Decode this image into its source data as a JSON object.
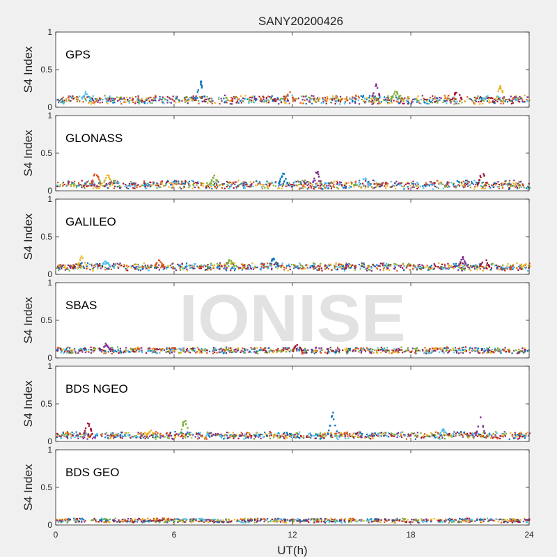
{
  "chart_data": {
    "type": "scatter",
    "title": "SANY20200426",
    "xlabel": "UT(h)",
    "ylabel": "S4 Index",
    "xlim": [
      0,
      24
    ],
    "ylim": [
      0,
      1
    ],
    "x_ticks": [
      "0",
      "6",
      "12",
      "18",
      "24"
    ],
    "y_ticks": [
      "0",
      "0.5",
      "1"
    ],
    "grid": false,
    "legend": "none",
    "watermark": "IONISE",
    "series_colors": [
      "#0072bd",
      "#d95319",
      "#edb120",
      "#7e2f8e",
      "#77ac30",
      "#4dbeee",
      "#a2142f"
    ],
    "panels": [
      {
        "label": "GPS",
        "baseline": 0.1,
        "noise": 0.04,
        "spikes": [
          [
            7.3,
            0.38
          ],
          [
            16.2,
            0.33
          ],
          [
            20.3,
            0.25
          ],
          [
            22.5,
            0.33
          ],
          [
            1.5,
            0.22
          ],
          [
            11.8,
            0.22
          ],
          [
            17.2,
            0.24
          ]
        ]
      },
      {
        "label": "GLONASS",
        "baseline": 0.08,
        "noise": 0.04,
        "spikes": [
          [
            2.0,
            0.3
          ],
          [
            8.0,
            0.22
          ],
          [
            11.5,
            0.28
          ],
          [
            13.2,
            0.3
          ],
          [
            21.6,
            0.31
          ],
          [
            2.6,
            0.24
          ],
          [
            15.6,
            0.2
          ]
        ]
      },
      {
        "label": "GALILEO",
        "baseline": 0.1,
        "noise": 0.035,
        "spikes": [
          [
            1.3,
            0.28
          ],
          [
            2.5,
            0.2
          ],
          [
            5.2,
            0.21
          ],
          [
            8.8,
            0.22
          ],
          [
            11.0,
            0.25
          ],
          [
            20.6,
            0.24
          ],
          [
            21.7,
            0.25
          ],
          [
            23.8,
            0.14
          ]
        ]
      },
      {
        "label": "SBAS",
        "baseline": 0.1,
        "noise": 0.025,
        "spikes": [
          [
            2.5,
            0.2
          ],
          [
            12.2,
            0.2
          ]
        ]
      },
      {
        "label": "BDS NGEO",
        "baseline": 0.08,
        "noise": 0.03,
        "spikes": [
          [
            6.5,
            0.36
          ],
          [
            14.0,
            0.44
          ],
          [
            21.5,
            0.35
          ],
          [
            1.6,
            0.28
          ],
          [
            4.8,
            0.16
          ],
          [
            19.6,
            0.17
          ]
        ]
      },
      {
        "label": "BDS GEO",
        "baseline": 0.06,
        "noise": 0.01,
        "spikes": []
      }
    ]
  }
}
